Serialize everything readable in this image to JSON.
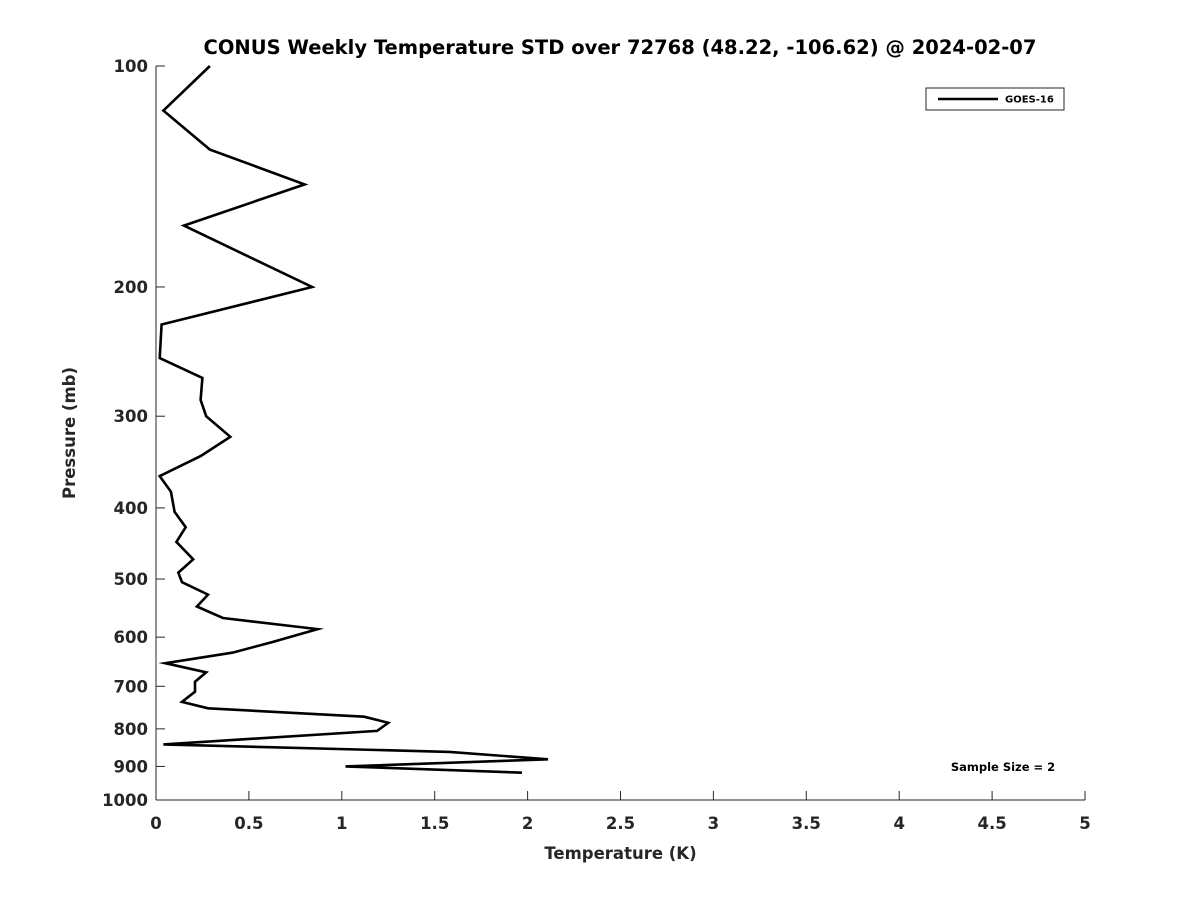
{
  "chart_data": {
    "type": "line",
    "title": "CONUS Weekly Temperature STD over 72768 (48.22, -106.62) @ 2024-02-07",
    "xlabel": "Temperature (K)",
    "ylabel": "Pressure (mb)",
    "xlim": [
      0,
      5
    ],
    "ylim": [
      100,
      1000
    ],
    "y_scale": "log",
    "y_reversed": true,
    "x_ticks": [
      0,
      0.5,
      1,
      1.5,
      2,
      2.5,
      3,
      3.5,
      4,
      4.5,
      5
    ],
    "x_tick_labels": [
      "0",
      "0.5",
      "1",
      "1.5",
      "2",
      "2.5",
      "3",
      "3.5",
      "4",
      "4.5",
      "5"
    ],
    "y_ticks": [
      100,
      200,
      300,
      400,
      500,
      600,
      700,
      800,
      900,
      1000
    ],
    "y_tick_labels": [
      "100",
      "200",
      "300",
      "400",
      "500",
      "600",
      "700",
      "800",
      "900",
      "1000"
    ],
    "grid": false,
    "legend_position": "top-right",
    "series": [
      {
        "name": "GOES-16",
        "color": "#000000",
        "x": [
          0.29,
          0.04,
          0.29,
          0.8,
          0.15,
          0.84,
          0.03,
          0.02,
          0.25,
          0.24,
          0.27,
          0.4,
          0.24,
          0.02,
          0.08,
          0.1,
          0.16,
          0.11,
          0.2,
          0.12,
          0.14,
          0.28,
          0.22,
          0.36,
          0.87,
          0.62,
          0.41,
          0.05,
          0.27,
          0.21,
          0.21,
          0.14,
          0.28,
          1.12,
          1.25,
          1.19,
          0.04,
          1.58,
          2.11,
          1.02,
          1.97
        ],
        "y": [
          100,
          115,
          130,
          145,
          165,
          200,
          225,
          250,
          266,
          285,
          300,
          320,
          340,
          362,
          380,
          405,
          425,
          445,
          470,
          490,
          505,
          525,
          545,
          565,
          585,
          610,
          630,
          651,
          670,
          690,
          712,
          735,
          750,
          770,
          785,
          805,
          840,
          860,
          880,
          900,
          918
        ]
      }
    ],
    "annotations": [
      "Sample Size = 2"
    ]
  }
}
